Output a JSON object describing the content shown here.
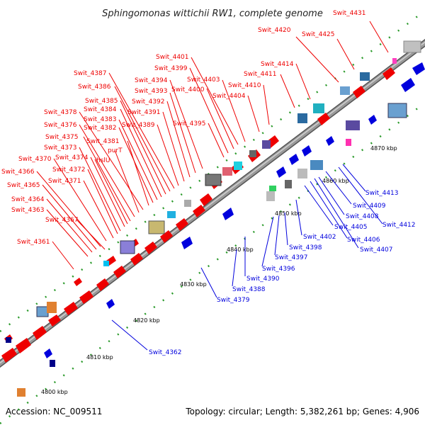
{
  "title": "Sphingomonas wittichii RW1, complete genome",
  "accession": "Accession: NC_009511",
  "summary": "Topology: circular; Length: 5,382,261 bp; Genes: 4,906",
  "colors": {
    "forward": "#ee0000",
    "reverse": "#0000dd",
    "backbone": "#8a8a8a"
  },
  "ticks": [
    "4800 kbp",
    "4810 kbp",
    "4820 kbp",
    "4830 kbp",
    "4840 kbp",
    "4850 kbp",
    "4860 kbp",
    "4870 kbp"
  ],
  "forward_genes": [
    "Swit_4361",
    "Swit_4363",
    "Swit_4364",
    "Swit_4365",
    "Swit_4366",
    "Swit_4367",
    "Swit_4370",
    "Swit_4371",
    "Swit_4372",
    "Swit_4373",
    "Swit_4374",
    "hslU",
    "Swit_4375",
    "Swit_4376",
    "purT",
    "Swit_4378",
    "Swit_4381",
    "Swit_4382",
    "Swit_4383",
    "Swit_4384",
    "Swit_4385",
    "Swit_4386",
    "Swit_4387",
    "Swit_4389",
    "Swit_4391",
    "Swit_4392",
    "Swit_4393",
    "Swit_4394",
    "Swit_4395",
    "Swit_4399",
    "Swit_4400",
    "Swit_4401",
    "Swit_4403",
    "Swit_4404",
    "Swit_4410",
    "Swit_4411",
    "Swit_4414",
    "Swit_4420",
    "Swit_4425",
    "Swit_4431"
  ],
  "reverse_genes": [
    "Swit_4362",
    "Swit_4379",
    "Swit_4388",
    "Swit_4390",
    "Swit_4396",
    "Swit_4397",
    "Swit_4398",
    "Swit_4402",
    "Swit_4405",
    "Swit_4406",
    "Swit_4407",
    "Swit_4408",
    "Swit_4409",
    "Swit_4412",
    "Swit_4413"
  ]
}
